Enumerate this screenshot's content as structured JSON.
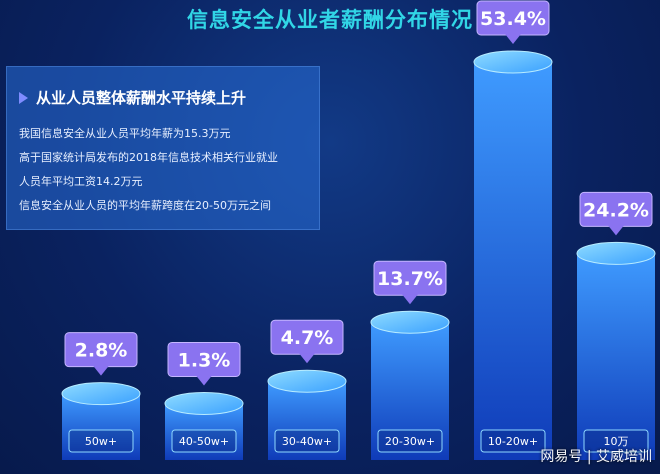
{
  "title": "信息安全从业者薪酬分布情况",
  "info": {
    "heading": "从业人员整体薪酬水平持续上升",
    "lines": [
      "我国信息安全从业人员平均年薪为15.3万元",
      "高于国家统计局发布的2018年信息技术相关行业就业",
      "人员年平均工资14.2万元",
      "信息安全从业人员的平均年薪跨度在20-50万元之间"
    ]
  },
  "watermark": "网易号 | 艾威培训",
  "chart_data": {
    "type": "bar",
    "categories": [
      "50w+",
      "40-50w+",
      "30-40w+",
      "20-30w+",
      "10-20w+",
      "10万"
    ],
    "values": [
      2.8,
      1.3,
      4.7,
      13.7,
      53.4,
      24.2
    ],
    "value_labels": [
      "2.8%",
      "1.3%",
      "4.7%",
      "13.7%",
      "53.4%",
      "24.2%"
    ],
    "colors": {
      "bar_top": "#58b6ff",
      "bar_bottom": "#1240c0",
      "label_bg": "#8a73f0"
    }
  }
}
